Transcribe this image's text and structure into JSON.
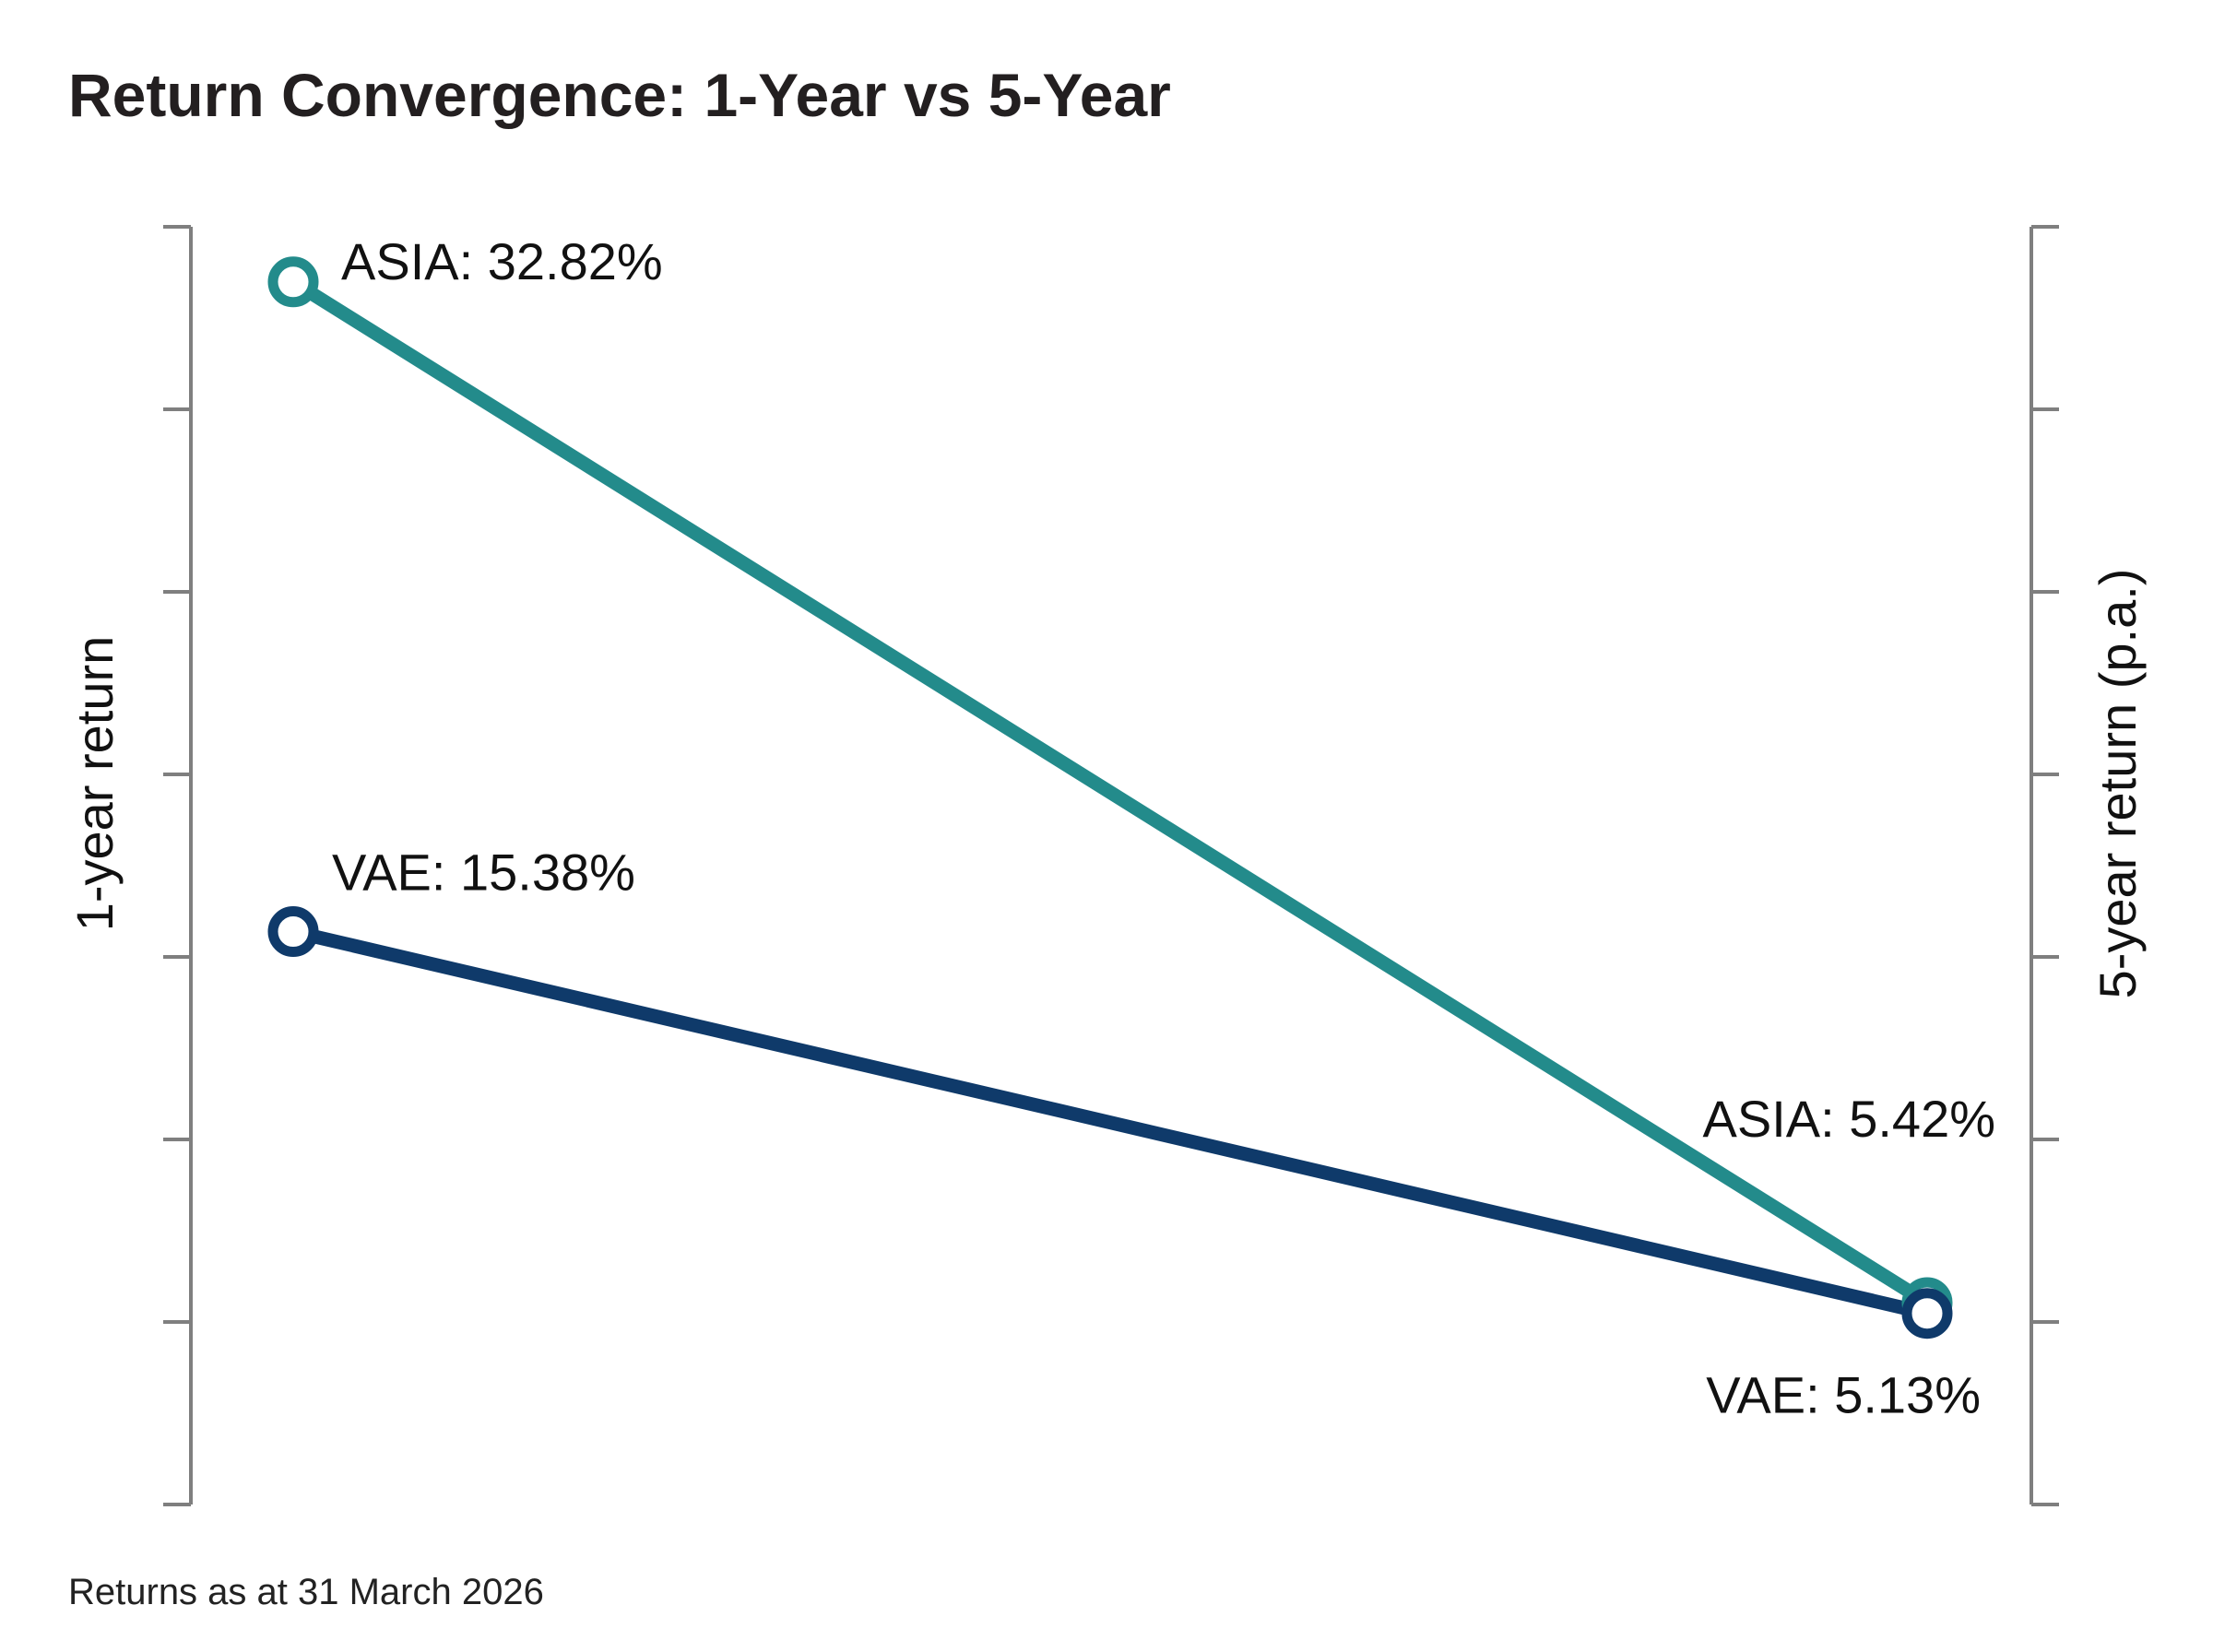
{
  "chart_data": {
    "type": "line",
    "title": "Return Convergence: 1-Year vs 5-Year",
    "footnote": "Returns as at 31 March 2026",
    "left_axis_label": "1-year return",
    "right_axis_label": "5-year return (p.a.)",
    "x": [
      "1-year return",
      "5-year return (p.a.)"
    ],
    "ylim": [
      0,
      35
    ],
    "series": [
      {
        "name": "ASIA",
        "values": [
          32.82,
          5.42
        ],
        "labels": [
          "ASIA: 32.82%",
          "ASIA: 5.42%"
        ],
        "color": "#238b8b"
      },
      {
        "name": "VAE",
        "values": [
          15.38,
          5.13
        ],
        "labels": [
          "VAE: 15.38%",
          "VAE: 5.13%"
        ],
        "color": "#0f3a6a"
      }
    ],
    "grid": false,
    "legend": "none",
    "axis_color": "#7f7f7f"
  }
}
